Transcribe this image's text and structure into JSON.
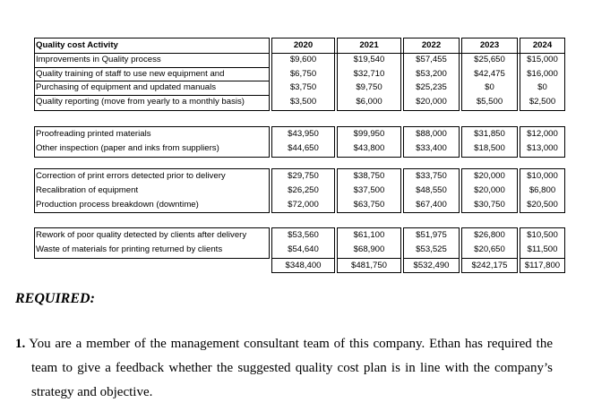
{
  "table": {
    "header": [
      "Quality cost Activity",
      "2020",
      "2021",
      "2022",
      "2023",
      "2024"
    ],
    "groups": [
      [
        [
          "Improvements in Quality process",
          "$9,600",
          "$19,540",
          "$57,455",
          "$25,650",
          "$15,000"
        ],
        [
          "Quality training of staff to use new equipment and",
          "$6,750",
          "$32,710",
          "$53,200",
          "$42,475",
          "$16,000"
        ],
        [
          "Purchasing of equipment and updated manuals",
          "$3,750",
          "$9,750",
          "$25,235",
          "$0",
          "$0"
        ],
        [
          "Quality reporting (move from yearly to  a monthly basis)",
          "$3,500",
          "$6,000",
          "$20,000",
          "$5,500",
          "$2,500"
        ]
      ],
      [
        [
          "Proofreading  printed materials",
          "$43,950",
          "$99,950",
          "$88,000",
          "$31,850",
          "$12,000"
        ],
        [
          "Other inspection (paper and inks from suppliers)",
          "$44,650",
          "$43,800",
          "$33,400",
          "$18,500",
          "$13,000"
        ]
      ],
      [
        [
          "Correction of print errors detected prior to delivery",
          "$29,750",
          "$38,750",
          "$33,750",
          "$20,000",
          "$10,000"
        ],
        [
          "Recalibration of equipment",
          "$26,250",
          "$37,500",
          "$48,550",
          "$20,000",
          "$6,800"
        ],
        [
          "Production process breakdown (downtime)",
          "$72,000",
          "$63,750",
          "$67,400",
          "$30,750",
          "$20,500"
        ]
      ],
      [
        [
          "Rework of poor quality detected by clients after delivery",
          "$53,560",
          "$61,100",
          "$51,975",
          "$26,800",
          "$10,500"
        ],
        [
          "Waste of materials for printing returned by clients",
          "$54,640",
          "$68,900",
          "$53,525",
          "$20,650",
          "$11,500"
        ]
      ]
    ],
    "totals": [
      "$348,400",
      "$481,750",
      "$532,490",
      "$242,175",
      "$117,800"
    ]
  },
  "required": "REQUIRED:",
  "question": {
    "number": "1.",
    "text": "You are a member of the management consultant team of this company. Ethan has required the team to give a feedback whether the suggested quality cost plan is in line with the company’s strategy and objective."
  }
}
